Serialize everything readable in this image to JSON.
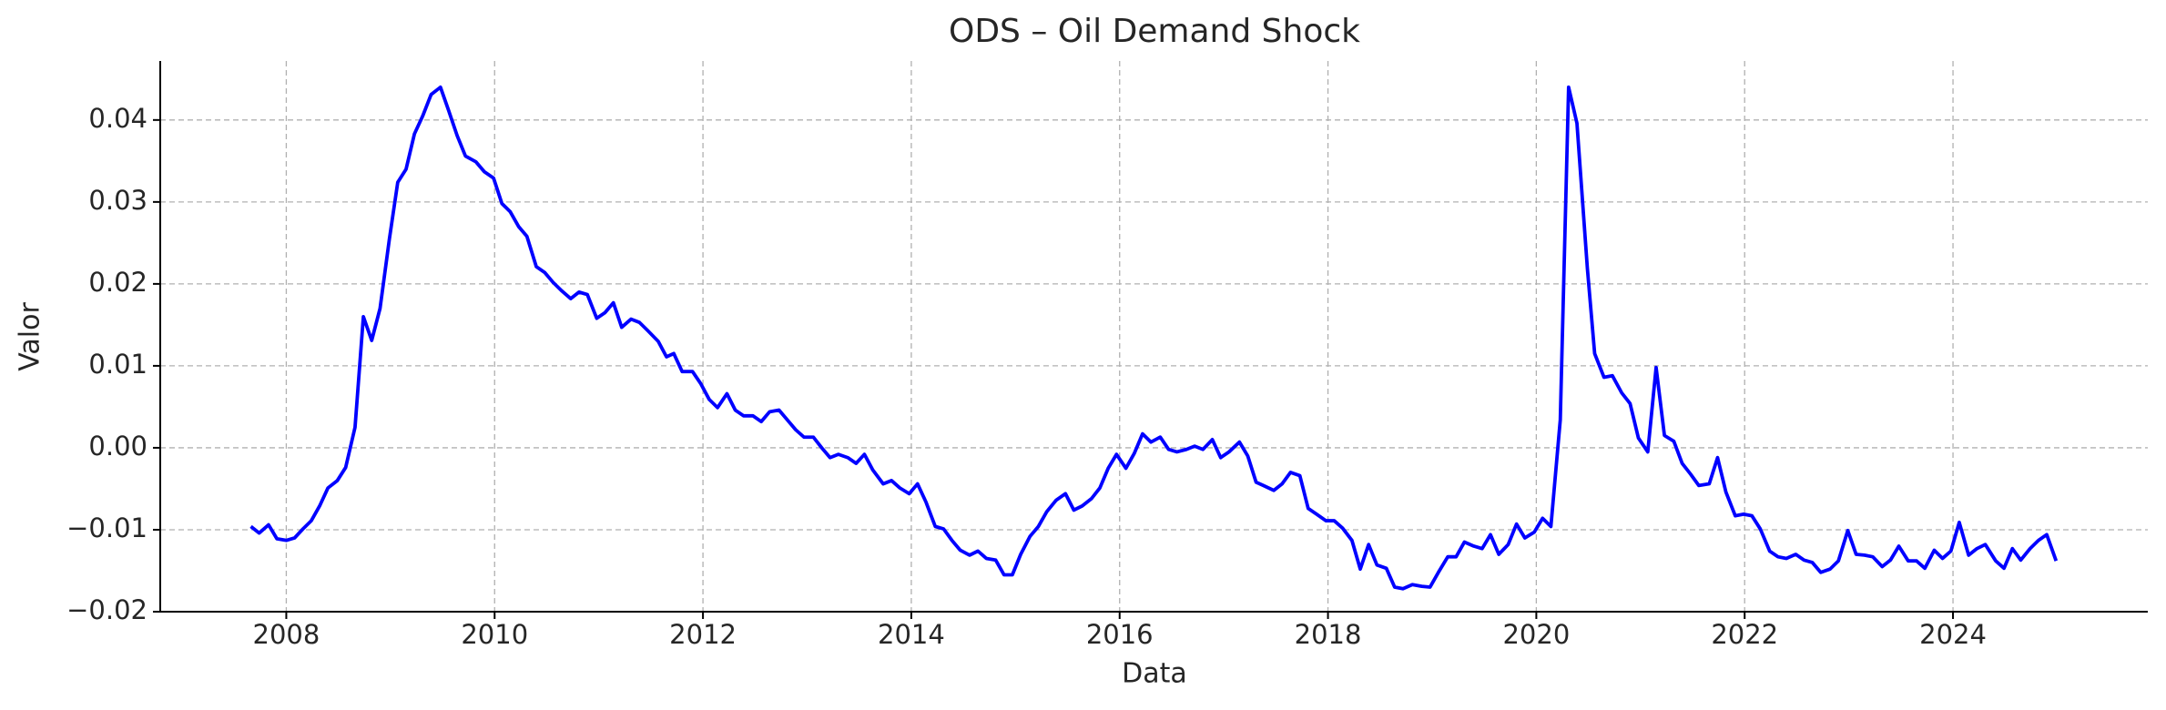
{
  "chart_data": {
    "type": "line",
    "title": "ODS – Oil Demand Shock",
    "x_label": "Data",
    "y_label": "Valor",
    "grid": true,
    "xlim": [
      2006.79,
      2025.87
    ],
    "ylim": [
      -0.02,
      0.0472
    ],
    "xticks": [
      2008,
      2010,
      2012,
      2014,
      2016,
      2018,
      2020,
      2022,
      2024
    ],
    "yticks": [
      {
        "value": -0.02,
        "label": "−0.02"
      },
      {
        "value": -0.01,
        "label": "−0.01"
      },
      {
        "value": 0,
        "label": "0.00"
      },
      0.01,
      0.02,
      0.03,
      0.04
    ],
    "x": [
      2007.66,
      2007.74,
      2007.83,
      2007.91,
      2008.0,
      2008.08,
      2008.16,
      2008.24,
      2008.32,
      2008.4,
      2008.49,
      2008.57,
      2008.66,
      2008.74,
      2008.82,
      2008.9,
      2008.99,
      2009.07,
      2009.15,
      2009.23,
      2009.31,
      2009.39,
      2009.48,
      2009.56,
      2009.64,
      2009.72,
      2009.82,
      2009.9,
      2009.99,
      2010.07,
      2010.15,
      2010.23,
      2010.31,
      2010.4,
      2010.48,
      2010.56,
      2010.64,
      2010.73,
      2010.81,
      2010.89,
      2010.98,
      2011.06,
      2011.14,
      2011.22,
      2011.31,
      2011.39,
      2011.47,
      2011.57,
      2011.65,
      2011.72,
      2011.8,
      2011.9,
      2011.98,
      2012.06,
      2012.14,
      2012.23,
      2012.31,
      2012.39,
      2012.48,
      2012.56,
      2012.64,
      2012.73,
      2012.81,
      2012.89,
      2012.97,
      2013.06,
      2013.14,
      2013.22,
      2013.3,
      2013.39,
      2013.47,
      2013.55,
      2013.63,
      2013.73,
      2013.81,
      2013.89,
      2013.98,
      2014.06,
      2014.14,
      2014.23,
      2014.31,
      2014.39,
      2014.47,
      2014.56,
      2014.64,
      2014.72,
      2014.81,
      2014.89,
      2014.97,
      2015.05,
      2015.14,
      2015.22,
      2015.3,
      2015.39,
      2015.48,
      2015.56,
      2015.64,
      2015.73,
      2015.81,
      2015.89,
      2015.97,
      2016.06,
      2016.14,
      2016.22,
      2016.3,
      2016.39,
      2016.47,
      2016.55,
      2016.64,
      2016.72,
      2016.8,
      2016.89,
      2016.97,
      2017.05,
      2017.15,
      2017.23,
      2017.31,
      2017.38,
      2017.48,
      2017.56,
      2017.64,
      2017.73,
      2017.81,
      2017.89,
      2017.98,
      2018.06,
      2018.14,
      2018.23,
      2018.31,
      2018.39,
      2018.47,
      2018.56,
      2018.64,
      2018.72,
      2018.81,
      2018.9,
      2018.98,
      2019.06,
      2019.15,
      2019.23,
      2019.31,
      2019.4,
      2019.48,
      2019.56,
      2019.64,
      2019.73,
      2019.81,
      2019.89,
      2019.98,
      2020.06,
      2020.14,
      2020.23,
      2020.31,
      2020.39,
      2020.49,
      2020.56,
      2020.65,
      2020.73,
      2020.82,
      2020.9,
      2020.98,
      2021.07,
      2021.15,
      2021.23,
      2021.32,
      2021.4,
      2021.48,
      2021.56,
      2021.66,
      2021.74,
      2021.82,
      2021.91,
      2021.99,
      2022.07,
      2022.15,
      2022.24,
      2022.32,
      2022.4,
      2022.49,
      2022.57,
      2022.65,
      2022.73,
      2022.82,
      2022.9,
      2022.99,
      2023.07,
      2023.15,
      2023.23,
      2023.32,
      2023.4,
      2023.48,
      2023.57,
      2023.65,
      2023.73,
      2023.82,
      2023.9,
      2023.98,
      2024.06,
      2024.15,
      2024.23,
      2024.31,
      2024.41,
      2024.49,
      2024.57,
      2024.65,
      2024.74,
      2024.82,
      2024.9,
      2024.99
    ],
    "series": [
      {
        "color": "#0000ff",
        "values": [
          -0.0096,
          -0.0104,
          -0.0094,
          -0.0111,
          -0.0113,
          -0.011,
          -0.0099,
          -0.0089,
          -0.0071,
          -0.0049,
          -0.004,
          -0.0024,
          0.0025,
          0.016,
          0.0131,
          0.017,
          0.0255,
          0.0324,
          0.034,
          0.0383,
          0.0405,
          0.0431,
          0.044,
          0.0411,
          0.0381,
          0.0356,
          0.0349,
          0.0337,
          0.0329,
          0.0298,
          0.0288,
          0.027,
          0.0258,
          0.0221,
          0.0214,
          0.0202,
          0.0192,
          0.0182,
          0.019,
          0.0187,
          0.0158,
          0.0165,
          0.0177,
          0.0147,
          0.0157,
          0.0153,
          0.0143,
          0.013,
          0.0111,
          0.0115,
          0.0093,
          0.0093,
          0.0078,
          0.0059,
          0.0049,
          0.0066,
          0.0046,
          0.0039,
          0.0039,
          0.0032,
          0.0044,
          0.0046,
          0.0034,
          0.0022,
          0.0013,
          0.0013,
          0,
          -0.0012,
          -0.0008,
          -0.0012,
          -0.0019,
          -0.0008,
          -0.0027,
          -0.0044,
          -0.004,
          -0.0049,
          -0.0056,
          -0.0044,
          -0.0066,
          -0.0096,
          -0.0099,
          -0.0113,
          -0.0125,
          -0.0131,
          -0.0126,
          -0.0135,
          -0.0137,
          -0.0155,
          -0.0155,
          -0.013,
          -0.0108,
          -0.0096,
          -0.0078,
          -0.0064,
          -0.0056,
          -0.0076,
          -0.0071,
          -0.0062,
          -0.0049,
          -0.0025,
          -0.0008,
          -0.0025,
          -0.0007,
          0.0017,
          0.0007,
          0.0013,
          -0.0002,
          -0.0005,
          -0.0002,
          0.0002,
          -0.0002,
          0.001,
          -0.0012,
          -0.0005,
          0.0007,
          -0.001,
          -0.0042,
          -0.0046,
          -0.0052,
          -0.0044,
          -0.003,
          -0.0034,
          -0.0074,
          -0.0081,
          -0.0089,
          -0.0089,
          -0.0098,
          -0.0113,
          -0.0148,
          -0.0118,
          -0.0143,
          -0.0147,
          -0.017,
          -0.0172,
          -0.0167,
          -0.0169,
          -0.017,
          -0.0152,
          -0.0133,
          -0.0133,
          -0.0115,
          -0.012,
          -0.0123,
          -0.0106,
          -0.013,
          -0.0118,
          -0.0093,
          -0.011,
          -0.0103,
          -0.0086,
          -0.0096,
          0.0034,
          0.044,
          0.0396,
          0.0219,
          0.0115,
          0.0086,
          0.0088,
          0.0067,
          0.0054,
          0.0012,
          -0.0005,
          0.0098,
          0.0015,
          0.0008,
          -0.0019,
          -0.0032,
          -0.0046,
          -0.0044,
          -0.0012,
          -0.0054,
          -0.0083,
          -0.0081,
          -0.0083,
          -0.0099,
          -0.0126,
          -0.0133,
          -0.0135,
          -0.013,
          -0.0137,
          -0.014,
          -0.0152,
          -0.0148,
          -0.0138,
          -0.0101,
          -0.013,
          -0.0131,
          -0.0133,
          -0.0145,
          -0.0137,
          -0.012,
          -0.0138,
          -0.0138,
          -0.0147,
          -0.0125,
          -0.0135,
          -0.0126,
          -0.0091,
          -0.0131,
          -0.0123,
          -0.0118,
          -0.0138,
          -0.0147,
          -0.0123,
          -0.0137,
          -0.0123,
          -0.0113,
          -0.0106,
          -0.0138
        ]
      }
    ]
  }
}
